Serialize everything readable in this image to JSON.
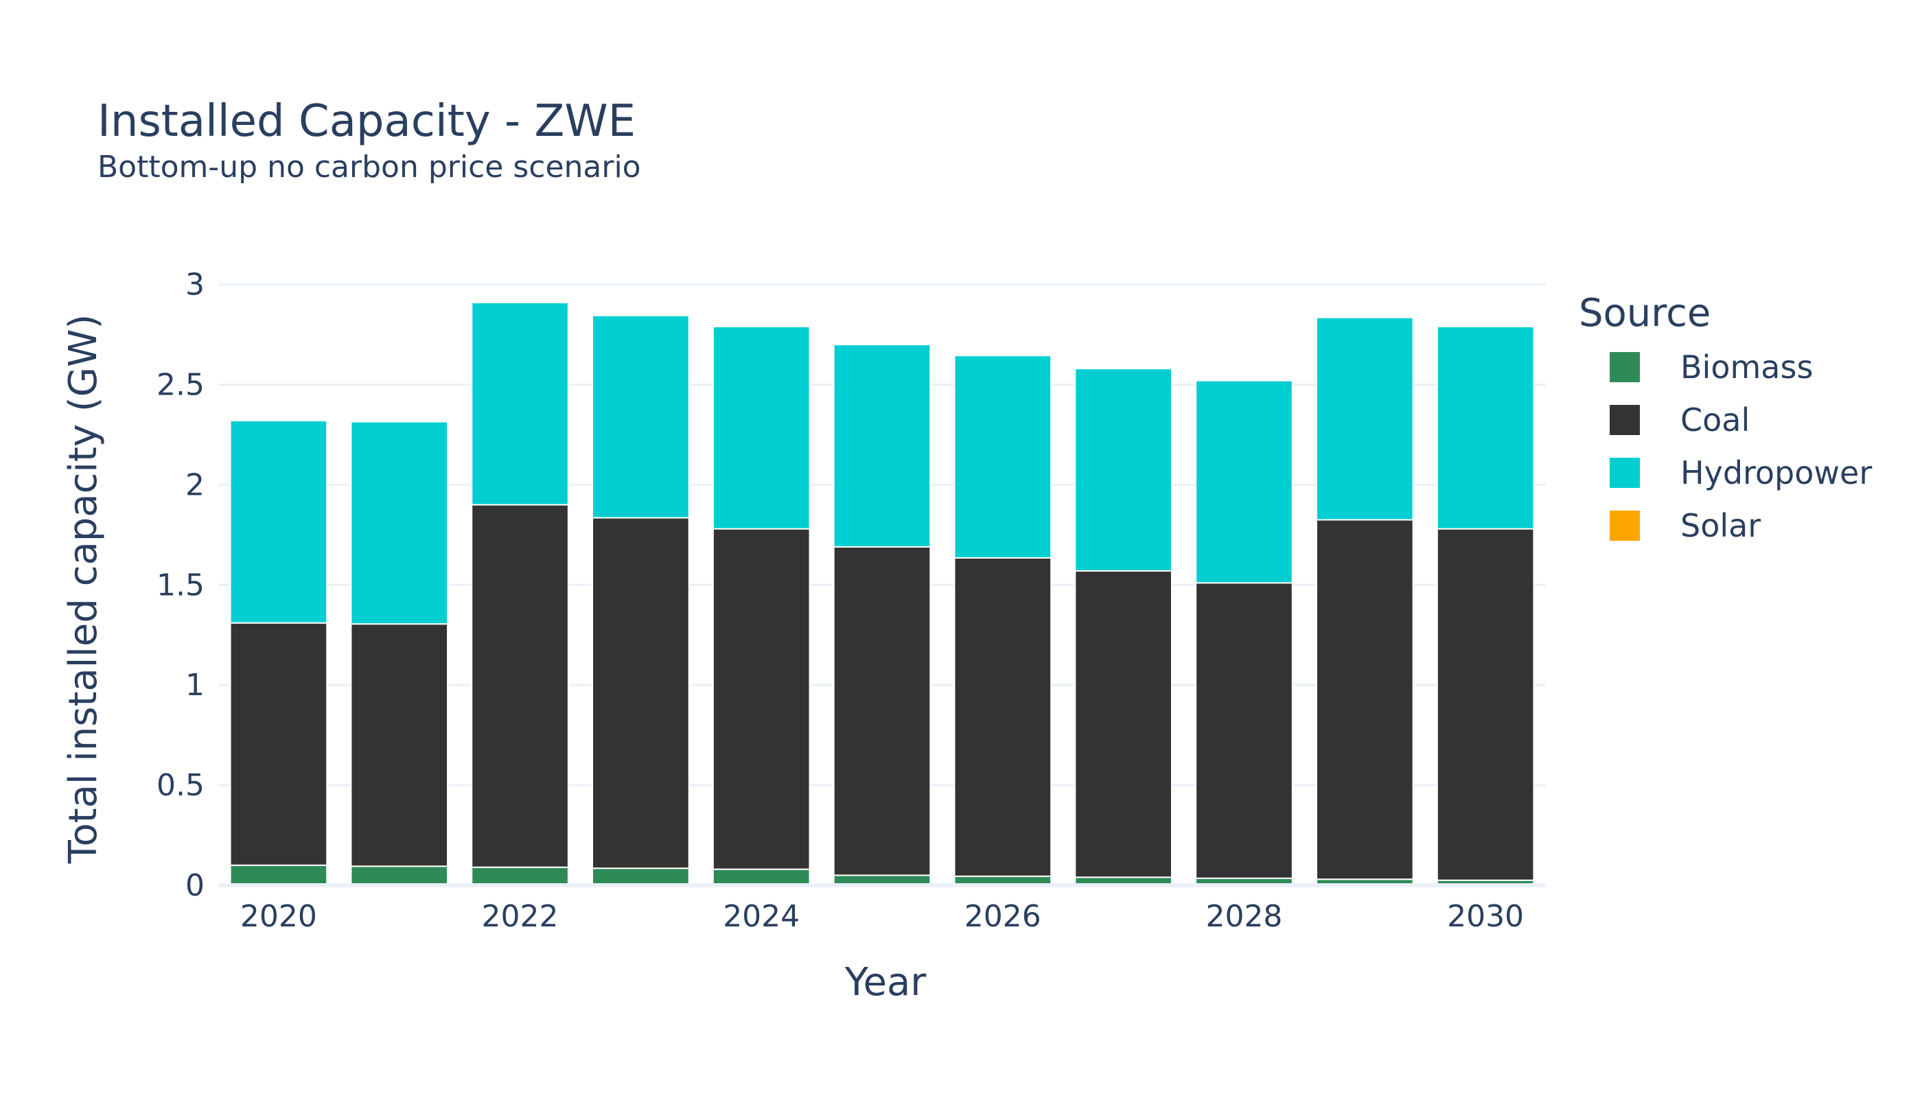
{
  "chart_data": {
    "type": "bar",
    "stacked": true,
    "title": "Installed Capacity - ZWE",
    "subtitle": "Bottom-up no carbon price scenario",
    "xlabel": "Year",
    "ylabel": "Total installed capacity (GW)",
    "x": [
      2020,
      2021,
      2022,
      2023,
      2024,
      2025,
      2026,
      2027,
      2028,
      2029,
      2030
    ],
    "x_ticks": [
      "2020",
      "2022",
      "2024",
      "2026",
      "2028",
      "2030"
    ],
    "x_tick_values": [
      2020,
      2022,
      2024,
      2026,
      2028,
      2030
    ],
    "ylim": [
      0,
      3.05
    ],
    "y_ticks": [
      0,
      0.5,
      1,
      1.5,
      2,
      2.5,
      3
    ],
    "y_tick_labels": [
      "0",
      "0.5",
      "1",
      "1.5",
      "2",
      "2.5",
      "3"
    ],
    "grid": true,
    "legend": {
      "title": "Source",
      "placement": "right"
    },
    "series": [
      {
        "name": "Biomass",
        "color": "#2e8b57",
        "values": [
          0.1,
          0.095,
          0.09,
          0.085,
          0.08,
          0.05,
          0.045,
          0.04,
          0.035,
          0.03,
          0.025
        ]
      },
      {
        "name": "Coal",
        "color": "#333333",
        "values": [
          1.21,
          1.21,
          1.81,
          1.75,
          1.7,
          1.64,
          1.59,
          1.53,
          1.475,
          1.795,
          1.755
        ]
      },
      {
        "name": "Hydropower",
        "color": "#00ced1",
        "values": [
          1.01,
          1.01,
          1.01,
          1.01,
          1.01,
          1.01,
          1.01,
          1.01,
          1.01,
          1.01,
          1.01
        ]
      },
      {
        "name": "Solar",
        "color": "#ffa500",
        "values": [
          0,
          0,
          0,
          0,
          0,
          0,
          0,
          0,
          0,
          0,
          0
        ]
      }
    ]
  }
}
